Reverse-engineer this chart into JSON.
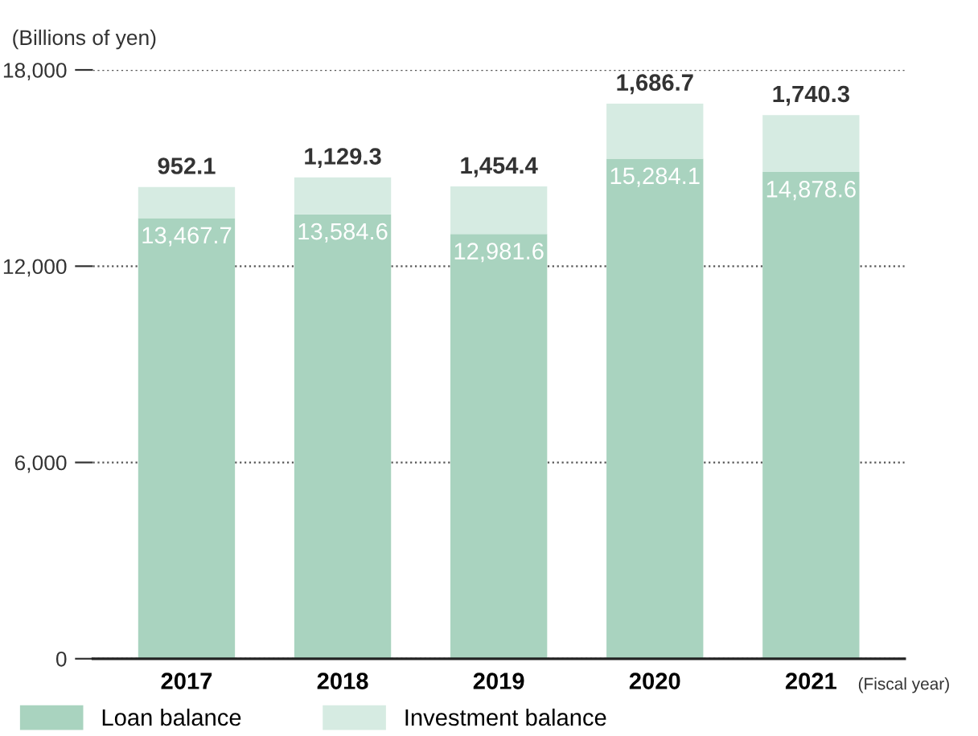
{
  "chart_data": {
    "type": "bar",
    "stacked": true,
    "ylabel": "(Billions of yen)",
    "xlabel": "(Fiscal year)",
    "categories": [
      "2017",
      "2018",
      "2019",
      "2020",
      "2021"
    ],
    "series": [
      {
        "name": "Loan balance",
        "color": "#a9d3bf",
        "values": [
          13467.7,
          13584.6,
          12981.6,
          15284.1,
          14878.6
        ],
        "value_labels": [
          "13,467.7",
          "13,584.6",
          "12,981.6",
          "15,284.1",
          "14,878.6"
        ]
      },
      {
        "name": "Investment balance",
        "color": "#d6ebe2",
        "values": [
          952.1,
          1129.3,
          1454.4,
          1686.7,
          1740.3
        ],
        "value_labels": [
          "952.1",
          "1,129.3",
          "1,454.4",
          "1,686.7",
          "1,740.3"
        ]
      }
    ],
    "ylim": [
      0,
      18000
    ],
    "yticks": [
      {
        "value": 0,
        "label": "0"
      },
      {
        "value": 6000,
        "label": "6,000"
      },
      {
        "value": 12000,
        "label": "12,000"
      },
      {
        "value": 18000,
        "label": "18,000"
      }
    ],
    "grid": "y",
    "legend": "bottom left"
  }
}
